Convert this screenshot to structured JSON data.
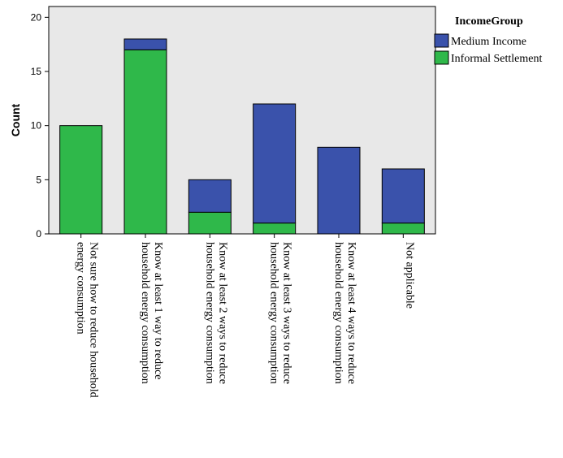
{
  "chart_data": {
    "type": "bar",
    "stacked": true,
    "categories": [
      [
        "Not sure how to reduce household",
        "energy consumption"
      ],
      [
        "Know at least 1 way to reduce",
        "household energy consumption"
      ],
      [
        "Know at least 2 ways to reduce",
        "household energy consumption"
      ],
      [
        "Know at least 3 ways to reduce",
        "household energy consumption"
      ],
      [
        "Know at least 4 ways to reduce",
        "household energy consumption"
      ],
      [
        "Not applicable"
      ]
    ],
    "series": [
      {
        "name": "Informal Settlement",
        "color": "#2fb84a",
        "values": [
          10,
          17,
          2,
          1,
          0,
          1
        ]
      },
      {
        "name": "Medium Income",
        "color": "#3a52ab",
        "values": [
          0,
          1,
          3,
          11,
          8,
          5
        ]
      }
    ],
    "legend_order": [
      1,
      0
    ],
    "ylabel": "Count",
    "ylim": [
      0,
      21
    ],
    "yticks": [
      0,
      5,
      10,
      15,
      20
    ],
    "legend": {
      "title": "IncomeGroup",
      "placement": "right"
    },
    "plot_background": "#e8e8e8",
    "grid": false
  }
}
